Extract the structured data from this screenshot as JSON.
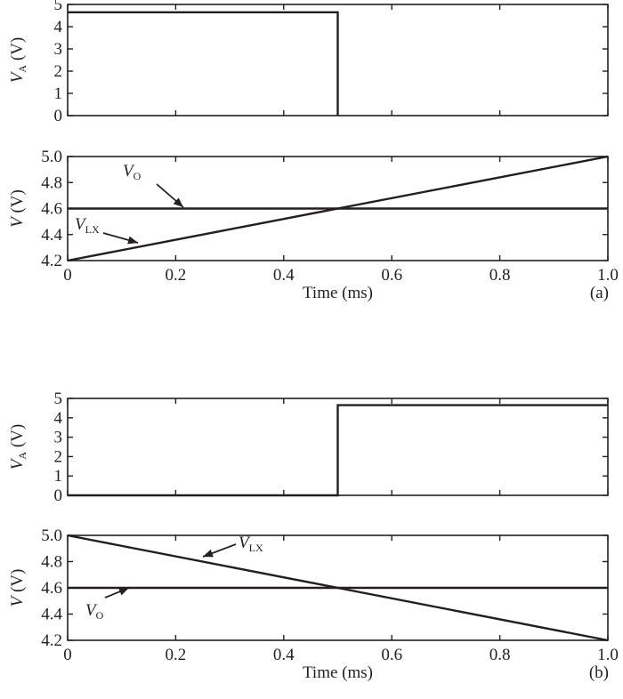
{
  "chart_data": [
    {
      "id": "a-top",
      "type": "line",
      "ylabel": "V",
      "ylabel_sub": "A",
      "ylabel_unit": " (V)",
      "xlim": [
        0,
        1.0
      ],
      "ylim": [
        0,
        5
      ],
      "yticks": [
        0,
        1,
        2,
        3,
        4,
        5
      ],
      "grid": false,
      "series": [
        {
          "x": [
            0,
            0.5,
            0.5,
            0.5
          ],
          "y": [
            4.65,
            4.65,
            4.65,
            0
          ]
        }
      ]
    },
    {
      "id": "a-bottom",
      "type": "line",
      "ylabel": "V",
      "ylabel_unit": " (V)",
      "xlabel": "Time (ms)",
      "panel_label": "(a)",
      "xlim": [
        0,
        1.0
      ],
      "ylim": [
        4.2,
        5.0
      ],
      "xticks": [
        "0",
        "0.2",
        "0.4",
        "0.6",
        "0.8",
        "1.0"
      ],
      "yticks": [
        "4.2",
        "4.4",
        "4.6",
        "4.8",
        "5.0"
      ],
      "grid": false,
      "series": [
        {
          "name": "V_O",
          "x": [
            0,
            1.0
          ],
          "y": [
            4.6,
            4.6
          ]
        },
        {
          "name": "V_LX",
          "x": [
            0,
            1.0
          ],
          "y": [
            4.2,
            5.0
          ]
        }
      ],
      "annotations": [
        {
          "text": "V",
          "sub": "O",
          "series": "V_O"
        },
        {
          "text": "V",
          "sub": "LX",
          "series": "V_LX"
        }
      ]
    },
    {
      "id": "b-top",
      "type": "line",
      "ylabel": "V",
      "ylabel_sub": "A",
      "ylabel_unit": " (V)",
      "xlim": [
        0,
        1.0
      ],
      "ylim": [
        0,
        5
      ],
      "yticks": [
        0,
        1,
        2,
        3,
        4,
        5
      ],
      "grid": false,
      "series": [
        {
          "x": [
            0,
            0.5,
            0.5,
            1.0
          ],
          "y": [
            0,
            0,
            4.65,
            4.65
          ]
        }
      ]
    },
    {
      "id": "b-bottom",
      "type": "line",
      "ylabel": "V",
      "ylabel_unit": " (V)",
      "xlabel": "Time (ms)",
      "panel_label": "(b)",
      "xlim": [
        0,
        1.0
      ],
      "ylim": [
        4.2,
        5.0
      ],
      "xticks": [
        "0",
        "0.2",
        "0.4",
        "0.6",
        "0.8",
        "1.0"
      ],
      "yticks": [
        "4.2",
        "4.4",
        "4.6",
        "4.8",
        "5.0"
      ],
      "grid": false,
      "series": [
        {
          "name": "V_LX",
          "x": [
            0,
            1.0
          ],
          "y": [
            5.0,
            4.2
          ]
        },
        {
          "name": "V_O",
          "x": [
            0,
            1.0
          ],
          "y": [
            4.6,
            4.6
          ]
        }
      ],
      "annotations": [
        {
          "text": "V",
          "sub": "LX",
          "series": "V_LX"
        },
        {
          "text": "V",
          "sub": "O",
          "series": "V_O"
        }
      ]
    }
  ]
}
